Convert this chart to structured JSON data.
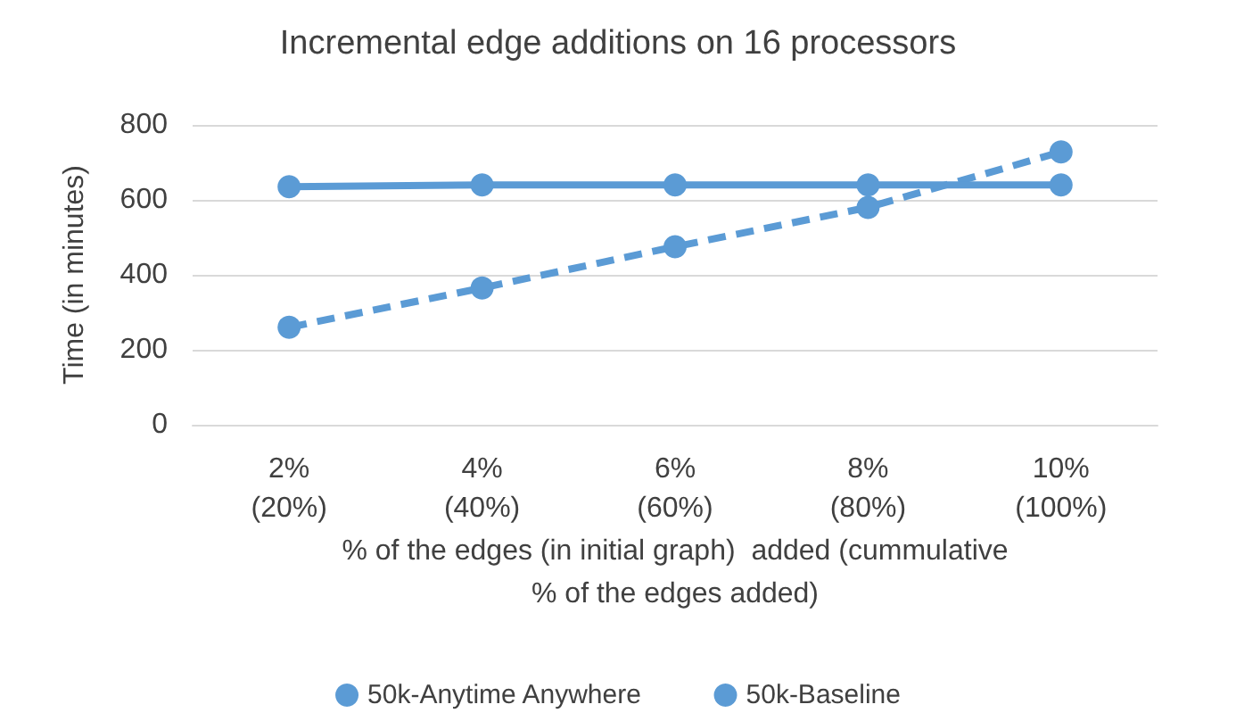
{
  "chart_data": {
    "type": "line",
    "title": "Incremental edge additions on 16 processors",
    "xlabel": "% of the edges (in initial graph)  added (cummulative\n% of the edges added)",
    "ylabel": "Time (in minutes)",
    "categories": [
      "2%\n(20%)",
      "4%\n(40%)",
      "6%\n(60%)",
      "8%\n(80%)",
      "10%\n(100%)"
    ],
    "series": [
      {
        "name": "50k-Anytime Anywhere",
        "color": "#5b9bd5",
        "line_style": "dashed",
        "values": [
          260,
          365,
          475,
          580,
          728
        ]
      },
      {
        "name": "50k-Baseline",
        "color": "#5b9bd5",
        "line_style": "solid",
        "values": [
          635,
          640,
          640,
          640,
          640
        ]
      }
    ],
    "ylim": [
      0,
      800
    ],
    "yticks": [
      0,
      200,
      400,
      600,
      800
    ],
    "grid": "y",
    "legend": "bottom",
    "marker": "circle"
  }
}
